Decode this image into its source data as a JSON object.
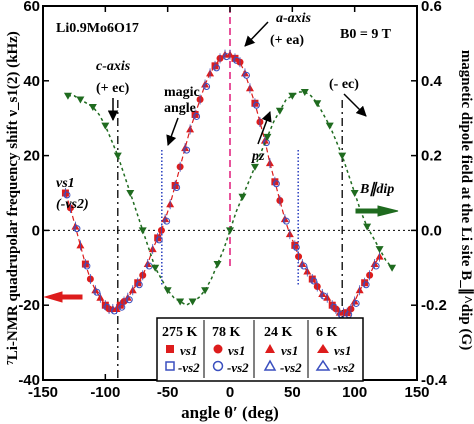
{
  "chart_data": {
    "type": "scatter",
    "x_label": "angle θ′ (deg)",
    "y_label_left": "⁷Li-NMR quadrupolar frequency shift ν_s1(2) (kHz)",
    "y_label_right": "magnetic dipole field at the Li site B_∥^dip (G)",
    "x_range": [
      -150,
      150
    ],
    "y_range_left": [
      -40,
      60
    ],
    "y_range_right": [
      -0.4,
      0.6
    ],
    "x_ticks": [
      "-150",
      "-100",
      "-50",
      "0",
      "50",
      "100",
      "150"
    ],
    "y_ticks_left": [
      "-40",
      "-20",
      "0",
      "20",
      "40",
      "60"
    ],
    "y_ticks_right": [
      "-0.4",
      "-0.2",
      "0.0",
      "0.2",
      "0.4",
      "0.6"
    ],
    "texts": {
      "formula": "Li0.9Mo6O17",
      "field": "B0 = 9 T",
      "c_axis": "c-axis",
      "c_axis_vec": "(+ ec)",
      "a_axis": "a-axis",
      "a_axis_vec": "(+ ea)",
      "neg_c_vec": "(- ec)",
      "magic_angle_1": "magic",
      "magic_angle_2": "angle",
      "pz": "pz",
      "nu_s1": "νs1",
      "neg_nu_s2": "(-νs2)",
      "b_par_dip": "B∥dip"
    },
    "legend": [
      {
        "temp": "275 K",
        "s1": "νs1",
        "s2": "-νs2"
      },
      {
        "temp": "78 K",
        "s1": "νs1",
        "s2": "-νs2"
      },
      {
        "temp": "24 K",
        "s1": "νs1",
        "s2": "-νs2"
      },
      {
        "temp": "6 K",
        "s1": "νs1",
        "s2": "-νs2"
      }
    ],
    "colors": {
      "nmr": "#dd1c1c",
      "nmr_s2": "#3a4fbf",
      "dipole": "#1f6b1f",
      "a_axis_line": "#e0187a"
    },
    "series": [
      {
        "name": "νs1 / -νs2",
        "axis": "left",
        "x": [
          -132,
          -128,
          -124,
          -120,
          -116,
          -112,
          -108,
          -104,
          -100,
          -97,
          -94,
          -91,
          -88,
          -85,
          -82,
          -78,
          -74,
          -70,
          -66,
          -62,
          -58,
          -55,
          -52,
          -48,
          -44,
          -40,
          -36,
          -32,
          -28,
          -24,
          -20,
          -16,
          -12,
          -8,
          -4,
          0,
          4,
          8,
          12,
          16,
          20,
          24,
          28,
          32,
          36,
          40,
          44,
          48,
          52,
          55,
          58,
          62,
          66,
          70,
          74,
          78,
          82,
          85,
          88,
          91,
          94,
          97,
          100,
          104,
          108,
          112,
          116,
          120
        ],
        "y": [
          10,
          6,
          1,
          -4,
          -9,
          -13,
          -16,
          -18,
          -20,
          -21,
          -21,
          -21,
          -20,
          -19,
          -18,
          -16,
          -14,
          -12,
          -9,
          -5,
          -2,
          0,
          3,
          7,
          12,
          17,
          22,
          27,
          31,
          35,
          39,
          42,
          44,
          46,
          47,
          47,
          46,
          45,
          42,
          38,
          34,
          29,
          24,
          18,
          13,
          8,
          3,
          -1,
          -4,
          -7,
          -9,
          -11,
          -13,
          -15,
          -17,
          -18,
          -20,
          -21,
          -22,
          -22,
          -22,
          -21,
          -19,
          -16,
          -14,
          -12,
          -9,
          -7
        ]
      },
      {
        "name": "B∥dip",
        "axis": "right",
        "x": [
          -130,
          -125,
          -120,
          -115,
          -110,
          -105,
          -100,
          -95,
          -90,
          -85,
          -80,
          -75,
          -70,
          -65,
          -60,
          -55,
          -50,
          -45,
          -40,
          -35,
          -30,
          -25,
          -20,
          -15,
          -10,
          -5,
          0,
          5,
          10,
          15,
          20,
          25,
          30,
          35,
          40,
          45,
          50,
          55,
          60,
          65,
          70,
          75,
          80,
          85,
          90,
          95,
          100,
          105,
          110,
          115,
          120,
          125,
          130
        ],
        "y": [
          0.36,
          0.36,
          0.35,
          0.34,
          0.33,
          0.31,
          0.28,
          0.24,
          0.2,
          0.15,
          0.1,
          0.05,
          0.0,
          -0.05,
          -0.1,
          -0.13,
          -0.16,
          -0.18,
          -0.19,
          -0.2,
          -0.19,
          -0.18,
          -0.16,
          -0.13,
          -0.09,
          -0.05,
          0.0,
          0.05,
          0.09,
          0.13,
          0.17,
          0.21,
          0.25,
          0.29,
          0.32,
          0.35,
          0.36,
          0.37,
          0.37,
          0.36,
          0.34,
          0.31,
          0.28,
          0.24,
          0.2,
          0.15,
          0.1,
          0.05,
          0.01,
          -0.02,
          -0.05,
          -0.08,
          -0.1
        ]
      }
    ]
  }
}
